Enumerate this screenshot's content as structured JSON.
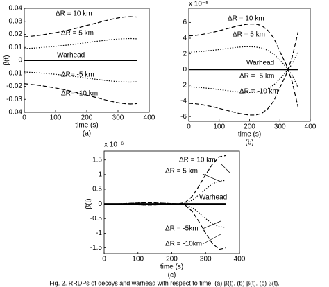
{
  "chart_data": [
    {
      "type": "line",
      "panel": "(a)",
      "x_label": "time (s)",
      "y_label": "β(t)",
      "x": [
        0,
        20,
        40,
        60,
        80,
        100,
        120,
        140,
        160,
        180,
        200,
        220,
        240,
        260,
        280,
        300,
        320,
        340,
        360
      ],
      "xlim": [
        0,
        400
      ],
      "xticks": [
        0,
        100,
        200,
        300,
        400
      ],
      "ylim": [
        -0.04,
        0.04
      ],
      "yticks": [
        -0.04,
        -0.03,
        -0.02,
        -0.01,
        0,
        0.01,
        0.02,
        0.03,
        0.04
      ],
      "series": [
        {
          "name": "ΔR = 10 km",
          "color": "#000000",
          "dash": "dashed",
          "values": [
            0.018,
            0.0185,
            0.019,
            0.0197,
            0.0205,
            0.0213,
            0.0222,
            0.0232,
            0.0243,
            0.0255,
            0.0268,
            0.028,
            0.0292,
            0.0305,
            0.0316,
            0.0326,
            0.0333,
            0.0336,
            0.0333
          ]
        },
        {
          "name": "ΔR = 5 km",
          "color": "#000000",
          "dash": "dotted",
          "values": [
            0.009,
            0.0093,
            0.0096,
            0.01,
            0.0104,
            0.0108,
            0.0113,
            0.0118,
            0.0124,
            0.013,
            0.0137,
            0.0143,
            0.0149,
            0.0155,
            0.016,
            0.0164,
            0.0167,
            0.0168,
            0.0166
          ]
        },
        {
          "name": "Warhead",
          "color": "#000000",
          "dash": "solid",
          "values": [
            0,
            0,
            0,
            0,
            0,
            0,
            0,
            0,
            0,
            0,
            0,
            0,
            0,
            0,
            0,
            0,
            0,
            0,
            0
          ]
        },
        {
          "name": "ΔR= -5 km",
          "color": "#000000",
          "dash": "dotted",
          "values": [
            -0.009,
            -0.0093,
            -0.0096,
            -0.01,
            -0.0104,
            -0.0108,
            -0.0113,
            -0.0118,
            -0.0124,
            -0.013,
            -0.0137,
            -0.0143,
            -0.0149,
            -0.0155,
            -0.016,
            -0.0164,
            -0.0167,
            -0.0168,
            -0.0166
          ]
        },
        {
          "name": "ΔR= -10 km",
          "color": "#000000",
          "dash": "dashed",
          "values": [
            -0.018,
            -0.0185,
            -0.019,
            -0.0197,
            -0.0205,
            -0.0213,
            -0.0222,
            -0.0232,
            -0.0243,
            -0.0255,
            -0.0268,
            -0.028,
            -0.0292,
            -0.0305,
            -0.0316,
            -0.0326,
            -0.0333,
            -0.0336,
            -0.0333
          ]
        }
      ]
    },
    {
      "type": "line",
      "panel": "(b)",
      "x_label": "time (s)",
      "exponent_label": "x 10⁻⁵",
      "x": [
        0,
        20,
        40,
        60,
        80,
        100,
        120,
        140,
        160,
        180,
        200,
        220,
        240,
        260,
        280,
        300,
        320,
        340,
        360
      ],
      "xlim": [
        0,
        400
      ],
      "xticks": [
        0,
        100,
        200,
        300,
        400
      ],
      "ylim": [
        -6.6,
        7.8
      ],
      "yticks": [
        -6,
        -4,
        -2,
        0,
        2,
        4,
        6
      ],
      "series": [
        {
          "name": "ΔR = 10 km",
          "color": "#000000",
          "dash": "dashed",
          "values": [
            4.3,
            4.35,
            4.45,
            4.6,
            4.75,
            4.95,
            5.15,
            5.35,
            5.55,
            5.7,
            5.8,
            5.8,
            5.6,
            5.0,
            4.0,
            2.3,
            0.7,
            -1.5,
            -4.8
          ]
        },
        {
          "name": "ΔR = 5 km",
          "color": "#000000",
          "dash": "dotted",
          "values": [
            2.2,
            2.25,
            2.3,
            2.38,
            2.46,
            2.55,
            2.65,
            2.75,
            2.84,
            2.9,
            2.92,
            2.88,
            2.75,
            2.45,
            1.95,
            1.2,
            0.35,
            -0.7,
            -2.3
          ]
        },
        {
          "name": "Warhead",
          "color": "#000000",
          "dash": "solid",
          "values": [
            0,
            0,
            0,
            0,
            0,
            0,
            0,
            0,
            0,
            0,
            0,
            0,
            0,
            0,
            0,
            0,
            0,
            0,
            0
          ]
        },
        {
          "name": "ΔR = -5 km",
          "color": "#000000",
          "dash": "dotted",
          "values": [
            -2.2,
            -2.25,
            -2.3,
            -2.38,
            -2.46,
            -2.55,
            -2.65,
            -2.75,
            -2.84,
            -2.9,
            -2.92,
            -2.88,
            -2.75,
            -2.45,
            -1.95,
            -1.2,
            -0.35,
            0.7,
            2.3
          ]
        },
        {
          "name": "ΔR = -10 km",
          "color": "#000000",
          "dash": "dashed",
          "values": [
            -4.3,
            -4.35,
            -4.45,
            -4.6,
            -4.75,
            -4.95,
            -5.15,
            -5.35,
            -5.55,
            -5.7,
            -5.8,
            -5.8,
            -5.6,
            -5.0,
            -4.0,
            -2.3,
            -0.7,
            1.5,
            4.8
          ]
        }
      ]
    },
    {
      "type": "line",
      "panel": "(c)",
      "x_label": "time (s)",
      "y_label": "β̈(t)",
      "exponent_label": "x 10⁻⁶",
      "x": [
        0,
        20,
        40,
        60,
        80,
        100,
        120,
        140,
        160,
        180,
        200,
        220,
        240,
        260,
        280,
        300,
        320,
        340,
        360
      ],
      "xlim": [
        0,
        400
      ],
      "xticks": [
        0,
        100,
        200,
        300,
        400
      ],
      "ylim": [
        -1.7,
        1.8
      ],
      "yticks": [
        -1.5,
        -1,
        -0.5,
        0,
        0.5,
        1,
        1.5
      ],
      "series": [
        {
          "name": "ΔR = 10 km",
          "color": "#000000",
          "dash": "dashed",
          "values": [
            0,
            0,
            0,
            -0.01,
            -0.02,
            -0.03,
            -0.04,
            -0.04,
            -0.03,
            -0.02,
            -0.01,
            0,
            0.05,
            0.25,
            0.6,
            1.0,
            1.35,
            1.6,
            1.65
          ]
        },
        {
          "name": "ΔR = 5 km",
          "color": "#000000",
          "dash": "dotted",
          "values": [
            0,
            0,
            0,
            0.01,
            0.02,
            0.03,
            0.04,
            0.04,
            0.03,
            0.02,
            0.01,
            0,
            0.02,
            0.12,
            0.3,
            0.5,
            0.68,
            0.78,
            0.8
          ]
        },
        {
          "name": "Warhead",
          "color": "#000000",
          "dash": "solid",
          "values": [
            0,
            0,
            0,
            0,
            0,
            0,
            0,
            0,
            0,
            0,
            0,
            0,
            0,
            0,
            0,
            0,
            0,
            0,
            0
          ]
        },
        {
          "name": "ΔR = -5km",
          "color": "#000000",
          "dash": "dotted",
          "values": [
            0,
            0,
            0,
            -0.01,
            -0.02,
            -0.03,
            -0.04,
            -0.04,
            -0.03,
            -0.02,
            -0.01,
            0,
            -0.02,
            -0.12,
            -0.3,
            -0.5,
            -0.68,
            -0.78,
            -0.8
          ]
        },
        {
          "name": "ΔR = -10km",
          "color": "#000000",
          "dash": "dashed",
          "values": [
            0,
            0,
            0,
            0.01,
            0.02,
            0.03,
            0.04,
            0.04,
            0.03,
            0.02,
            0.01,
            0,
            -0.05,
            -0.25,
            -0.6,
            -1.0,
            -1.35,
            -1.55,
            -1.5
          ]
        }
      ]
    }
  ],
  "caption": "Fig. 2.   RRDPs of decoys and warhead with respect to time. (a) β(t). (b) β̇(t). (c) β̈(t)."
}
